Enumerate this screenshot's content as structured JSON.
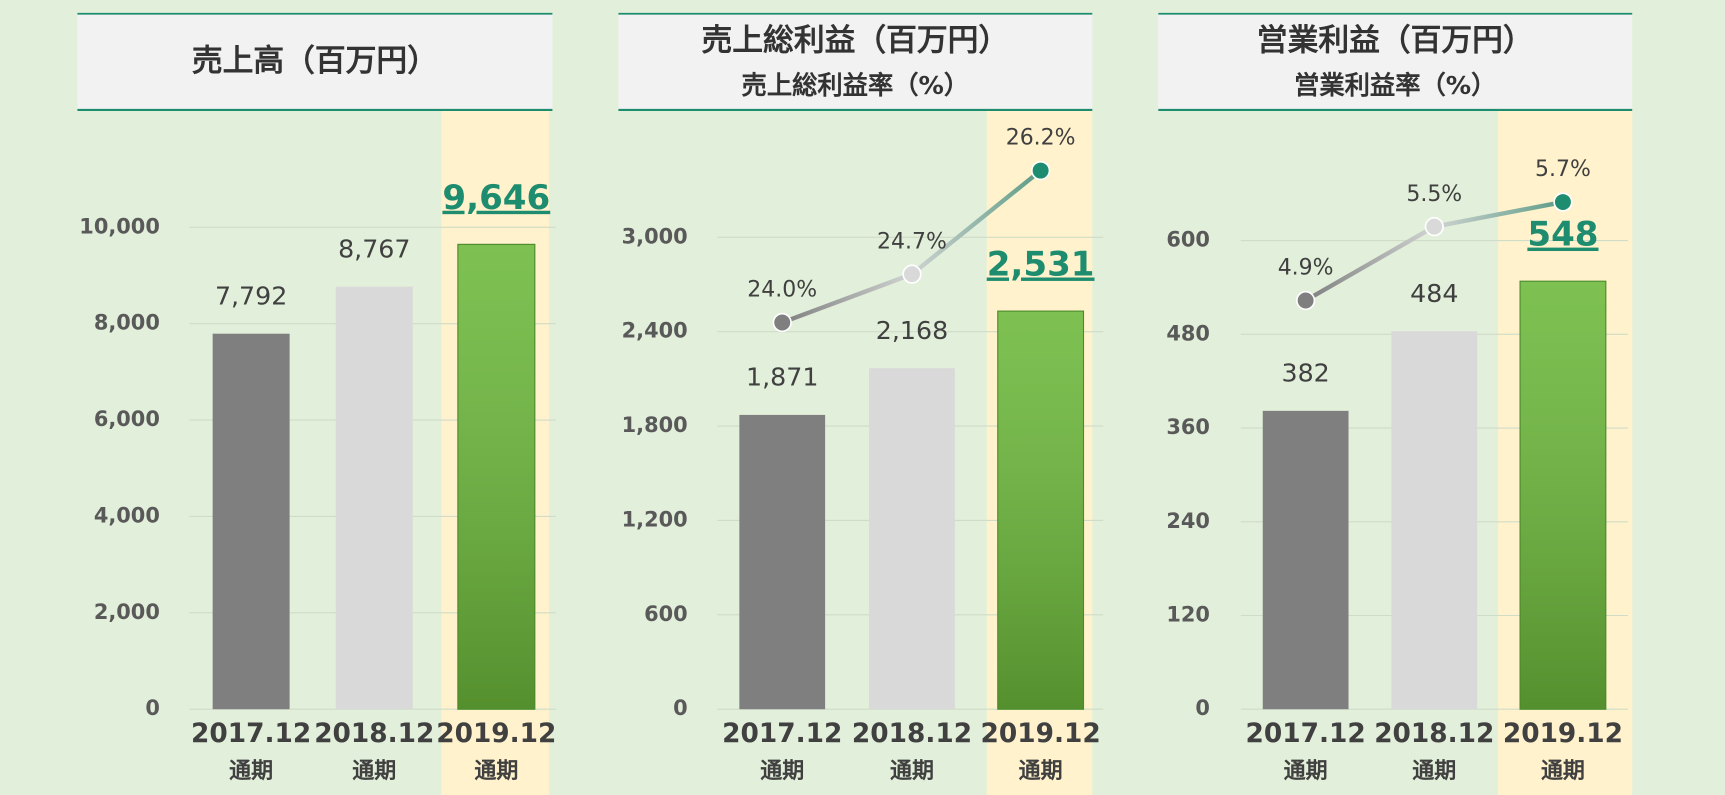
{
  "chart_data": [
    {
      "type": "bar",
      "title": "売上高（百万円）",
      "categories": [
        "2017.12",
        "2018.12",
        "2019.12"
      ],
      "category_sublabel": "通期",
      "highlight": 2,
      "bars": {
        "values": [
          7792,
          8767,
          9646
        ],
        "value_labels": [
          "7,792",
          "8,767",
          "9,646"
        ],
        "colors": [
          "#7f7f7f",
          "#d9d9d9",
          "#6cb83a"
        ]
      },
      "ylim": [
        0,
        11750
      ],
      "yticks": [
        0,
        {
          "value": 2000,
          "label": "2,000"
        },
        {
          "value": 4000,
          "label": "4,000"
        },
        {
          "value": 6000,
          "label": "6,000"
        },
        {
          "value": 8000,
          "label": "8,000"
        },
        {
          "value": 10000,
          "label": "10,000"
        }
      ],
      "grid": true
    },
    {
      "type": "bar_line",
      "title": "売上総利益（百万円）",
      "subtitle": "売上総利益率（%）",
      "categories": [
        "2017.12",
        "2018.12",
        "2019.12"
      ],
      "category_sublabel": "通期",
      "highlight": 2,
      "bars": {
        "values": [
          1871,
          2168,
          2531
        ],
        "value_labels": [
          "1,871",
          "2,168",
          "2,531"
        ],
        "colors": [
          "#7f7f7f",
          "#d9d9d9",
          "#6cb83a"
        ]
      },
      "line": {
        "values": [
          24.0,
          24.7,
          26.2
        ],
        "value_labels": [
          "24.0%",
          "24.7%",
          "26.2%"
        ],
        "colors": [
          "#7f7f7f",
          "#d9d9d9",
          "#1e8c6e"
        ],
        "axis": "y2"
      },
      "ylim": [
        0,
        3600
      ],
      "yticks": [
        0,
        600,
        {
          "value": 1200,
          "label": "1,200"
        },
        {
          "value": 1800,
          "label": "1,800"
        },
        {
          "value": 2400,
          "label": "2,400"
        },
        {
          "value": 3000,
          "label": "3,000"
        }
      ],
      "y2lim": [
        18.4,
        26.6
      ],
      "grid": true
    },
    {
      "type": "bar_line",
      "title": "営業利益（百万円）",
      "subtitle": "営業利益率（%）",
      "categories": [
        "2017.12",
        "2018.12",
        "2019.12"
      ],
      "category_sublabel": "通期",
      "highlight": 2,
      "bars": {
        "values": [
          382,
          484,
          548
        ],
        "value_labels": [
          "382",
          "484",
          "548"
        ],
        "colors": [
          "#7f7f7f",
          "#d9d9d9",
          "#6cb83a"
        ]
      },
      "line": {
        "values": [
          4.9,
          5.5,
          5.7
        ],
        "value_labels": [
          "4.9%",
          "5.5%",
          "5.7%"
        ],
        "colors": [
          "#7f7f7f",
          "#d9d9d9",
          "#1e8c6e"
        ],
        "axis": "y2"
      },
      "ylim": [
        0,
        725
      ],
      "yticks": [
        0,
        120,
        240,
        360,
        480,
        600
      ],
      "y2lim": [
        1.58,
        6.18
      ],
      "grid": true
    }
  ]
}
